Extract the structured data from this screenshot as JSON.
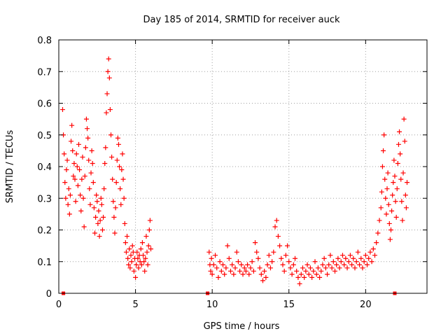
{
  "chart_data": {
    "type": "scatter",
    "title": "Day 185 of 2014, SRMTID for receiver auck",
    "xlabel": "GPS time / hours",
    "ylabel": "SRMTID / TECUs",
    "xlim": [
      0,
      24
    ],
    "ylim": [
      0,
      0.8
    ],
    "x_ticks": [
      0,
      5,
      10,
      15,
      20
    ],
    "y_ticks": [
      0,
      0.1,
      0.2,
      0.3,
      0.4,
      0.5,
      0.6,
      0.7,
      0.8
    ],
    "x_tick_labels": [
      "0",
      "5",
      "10",
      "15",
      "20"
    ],
    "y_tick_labels": [
      "0",
      "0.1",
      "0.2",
      "0.3",
      "0.4",
      "0.5",
      "0.6",
      "0.7",
      "0.8"
    ],
    "grid": true,
    "marker": "+",
    "marker_color": "#ff0000",
    "series": [
      {
        "name": "SRMTID",
        "points": [
          [
            0.25,
            0.58
          ],
          [
            0.3,
            0.5
          ],
          [
            0.35,
            0.44
          ],
          [
            0.4,
            0.35
          ],
          [
            0.45,
            0.3
          ],
          [
            0.5,
            0.39
          ],
          [
            0.55,
            0.42
          ],
          [
            0.6,
            0.28
          ],
          [
            0.65,
            0.33
          ],
          [
            0.7,
            0.25
          ],
          [
            0.75,
            0.31
          ],
          [
            0.8,
            0.48
          ],
          [
            0.85,
            0.53
          ],
          [
            0.9,
            0.45
          ],
          [
            0.95,
            0.37
          ],
          [
            1.0,
            0.41
          ],
          [
            1.05,
            0.36
          ],
          [
            1.1,
            0.29
          ],
          [
            1.15,
            0.44
          ],
          [
            1.2,
            0.4
          ],
          [
            1.25,
            0.34
          ],
          [
            1.3,
            0.47
          ],
          [
            1.35,
            0.39
          ],
          [
            1.4,
            0.31
          ],
          [
            1.45,
            0.26
          ],
          [
            1.5,
            0.36
          ],
          [
            1.55,
            0.43
          ],
          [
            1.6,
            0.3
          ],
          [
            1.65,
            0.21
          ],
          [
            1.7,
            0.37
          ],
          [
            1.75,
            0.46
          ],
          [
            1.8,
            0.55
          ],
          [
            1.85,
            0.52
          ],
          [
            1.9,
            0.49
          ],
          [
            1.95,
            0.42
          ],
          [
            2.0,
            0.33
          ],
          [
            2.05,
            0.28
          ],
          [
            2.1,
            0.38
          ],
          [
            2.15,
            0.45
          ],
          [
            2.2,
            0.41
          ],
          [
            2.25,
            0.35
          ],
          [
            2.3,
            0.27
          ],
          [
            2.35,
            0.19
          ],
          [
            2.4,
            0.24
          ],
          [
            2.45,
            0.31
          ],
          [
            2.5,
            0.29
          ],
          [
            2.55,
            0.22
          ],
          [
            2.6,
            0.26
          ],
          [
            2.65,
            0.18
          ],
          [
            2.7,
            0.23
          ],
          [
            2.75,
            0.3
          ],
          [
            2.8,
            0.28
          ],
          [
            2.85,
            0.2
          ],
          [
            2.9,
            0.24
          ],
          [
            2.95,
            0.33
          ],
          [
            3.0,
            0.41
          ],
          [
            3.05,
            0.46
          ],
          [
            3.1,
            0.57
          ],
          [
            3.15,
            0.63
          ],
          [
            3.2,
            0.7
          ],
          [
            3.25,
            0.74
          ],
          [
            3.3,
            0.68
          ],
          [
            3.35,
            0.58
          ],
          [
            3.4,
            0.5
          ],
          [
            3.45,
            0.43
          ],
          [
            3.5,
            0.36
          ],
          [
            3.55,
            0.29
          ],
          [
            3.6,
            0.24
          ],
          [
            3.65,
            0.19
          ],
          [
            3.7,
            0.27
          ],
          [
            3.75,
            0.35
          ],
          [
            3.8,
            0.42
          ],
          [
            3.85,
            0.49
          ],
          [
            3.9,
            0.47
          ],
          [
            3.95,
            0.4
          ],
          [
            4.0,
            0.33
          ],
          [
            4.05,
            0.28
          ],
          [
            4.1,
            0.39
          ],
          [
            4.15,
            0.44
          ],
          [
            4.2,
            0.36
          ],
          [
            4.25,
            0.3
          ],
          [
            4.3,
            0.22
          ],
          [
            4.35,
            0.16
          ],
          [
            4.4,
            0.13
          ],
          [
            4.45,
            0.18
          ],
          [
            4.5,
            0.11
          ],
          [
            4.55,
            0.09
          ],
          [
            4.6,
            0.14
          ],
          [
            4.65,
            0.08
          ],
          [
            4.7,
            0.12
          ],
          [
            4.75,
            0.1
          ],
          [
            4.8,
            0.15
          ],
          [
            4.85,
            0.13
          ],
          [
            4.9,
            0.07
          ],
          [
            4.95,
            0.11
          ],
          [
            5.0,
            0.05
          ],
          [
            5.05,
            0.09
          ],
          [
            5.1,
            0.13
          ],
          [
            5.15,
            0.11
          ],
          [
            5.2,
            0.08
          ],
          [
            5.25,
            0.12
          ],
          [
            5.3,
            0.1
          ],
          [
            5.35,
            0.14
          ],
          [
            5.4,
            0.09
          ],
          [
            5.45,
            0.16
          ],
          [
            5.5,
            0.12
          ],
          [
            5.55,
            0.1
          ],
          [
            5.6,
            0.07
          ],
          [
            5.65,
            0.11
          ],
          [
            5.7,
            0.18
          ],
          [
            5.75,
            0.13
          ],
          [
            5.8,
            0.09
          ],
          [
            5.85,
            0.15
          ],
          [
            5.9,
            0.2
          ],
          [
            5.95,
            0.23
          ],
          [
            6.0,
            0.14
          ],
          [
            9.8,
            0.13
          ],
          [
            9.85,
            0.09
          ],
          [
            9.9,
            0.07
          ],
          [
            9.95,
            0.11
          ],
          [
            10.0,
            0.06
          ],
          [
            10.1,
            0.09
          ],
          [
            10.2,
            0.12
          ],
          [
            10.3,
            0.08
          ],
          [
            10.4,
            0.05
          ],
          [
            10.5,
            0.1
          ],
          [
            10.6,
            0.07
          ],
          [
            10.7,
            0.09
          ],
          [
            10.8,
            0.06
          ],
          [
            10.9,
            0.08
          ],
          [
            11.0,
            0.15
          ],
          [
            11.1,
            0.11
          ],
          [
            11.2,
            0.07
          ],
          [
            11.3,
            0.09
          ],
          [
            11.4,
            0.06
          ],
          [
            11.5,
            0.08
          ],
          [
            11.6,
            0.13
          ],
          [
            11.7,
            0.1
          ],
          [
            11.8,
            0.07
          ],
          [
            11.9,
            0.09
          ],
          [
            12.0,
            0.06
          ],
          [
            12.1,
            0.08
          ],
          [
            12.2,
            0.07
          ],
          [
            12.3,
            0.09
          ],
          [
            12.4,
            0.06
          ],
          [
            12.5,
            0.08
          ],
          [
            12.6,
            0.1
          ],
          [
            12.7,
            0.07
          ],
          [
            12.8,
            0.16
          ],
          [
            12.9,
            0.13
          ],
          [
            13.0,
            0.11
          ],
          [
            13.1,
            0.08
          ],
          [
            13.2,
            0.06
          ],
          [
            13.3,
            0.04
          ],
          [
            13.4,
            0.07
          ],
          [
            13.5,
            0.05
          ],
          [
            13.6,
            0.09
          ],
          [
            13.7,
            0.12
          ],
          [
            13.8,
            0.08
          ],
          [
            13.9,
            0.1
          ],
          [
            14.0,
            0.13
          ],
          [
            14.1,
            0.21
          ],
          [
            14.2,
            0.23
          ],
          [
            14.3,
            0.18
          ],
          [
            14.4,
            0.15
          ],
          [
            14.5,
            0.11
          ],
          [
            14.6,
            0.09
          ],
          [
            14.7,
            0.07
          ],
          [
            14.8,
            0.12
          ],
          [
            14.9,
            0.15
          ],
          [
            15.0,
            0.1
          ],
          [
            15.1,
            0.08
          ],
          [
            15.2,
            0.06
          ],
          [
            15.3,
            0.09
          ],
          [
            15.4,
            0.11
          ],
          [
            15.5,
            0.07
          ],
          [
            15.6,
            0.05
          ],
          [
            15.7,
            0.03
          ],
          [
            15.8,
            0.06
          ],
          [
            15.9,
            0.08
          ],
          [
            16.0,
            0.05
          ],
          [
            16.1,
            0.07
          ],
          [
            16.2,
            0.09
          ],
          [
            16.3,
            0.06
          ],
          [
            16.4,
            0.08
          ],
          [
            16.5,
            0.05
          ],
          [
            16.6,
            0.07
          ],
          [
            16.7,
            0.1
          ],
          [
            16.8,
            0.06
          ],
          [
            16.9,
            0.08
          ],
          [
            17.0,
            0.05
          ],
          [
            17.1,
            0.07
          ],
          [
            17.2,
            0.09
          ],
          [
            17.3,
            0.11
          ],
          [
            17.4,
            0.08
          ],
          [
            17.5,
            0.06
          ],
          [
            17.6,
            0.09
          ],
          [
            17.7,
            0.12
          ],
          [
            17.8,
            0.08
          ],
          [
            17.9,
            0.1
          ],
          [
            18.0,
            0.07
          ],
          [
            18.1,
            0.09
          ],
          [
            18.2,
            0.11
          ],
          [
            18.3,
            0.08
          ],
          [
            18.4,
            0.1
          ],
          [
            18.5,
            0.12
          ],
          [
            18.6,
            0.09
          ],
          [
            18.7,
            0.11
          ],
          [
            18.8,
            0.08
          ],
          [
            18.9,
            0.1
          ],
          [
            19.0,
            0.12
          ],
          [
            19.1,
            0.09
          ],
          [
            19.2,
            0.11
          ],
          [
            19.3,
            0.08
          ],
          [
            19.4,
            0.1
          ],
          [
            19.5,
            0.13
          ],
          [
            19.6,
            0.09
          ],
          [
            19.7,
            0.11
          ],
          [
            19.8,
            0.08
          ],
          [
            19.9,
            0.1
          ],
          [
            20.0,
            0.12
          ],
          [
            20.1,
            0.09
          ],
          [
            20.2,
            0.11
          ],
          [
            20.3,
            0.13
          ],
          [
            20.4,
            0.1
          ],
          [
            20.5,
            0.14
          ],
          [
            20.6,
            0.12
          ],
          [
            20.7,
            0.16
          ],
          [
            20.8,
            0.19
          ],
          [
            20.9,
            0.23
          ],
          [
            21.0,
            0.27
          ],
          [
            21.05,
            0.32
          ],
          [
            21.1,
            0.4
          ],
          [
            21.15,
            0.45
          ],
          [
            21.2,
            0.5
          ],
          [
            21.25,
            0.36
          ],
          [
            21.3,
            0.3
          ],
          [
            21.35,
            0.25
          ],
          [
            21.4,
            0.33
          ],
          [
            21.45,
            0.38
          ],
          [
            21.5,
            0.28
          ],
          [
            21.55,
            0.22
          ],
          [
            21.6,
            0.17
          ],
          [
            21.65,
            0.2
          ],
          [
            21.7,
            0.26
          ],
          [
            21.75,
            0.31
          ],
          [
            21.8,
            0.35
          ],
          [
            21.85,
            0.42
          ],
          [
            21.9,
            0.37
          ],
          [
            21.95,
            0.29
          ],
          [
            22.0,
            0.24
          ],
          [
            22.05,
            0.33
          ],
          [
            22.1,
            0.41
          ],
          [
            22.15,
            0.47
          ],
          [
            22.2,
            0.51
          ],
          [
            22.25,
            0.44
          ],
          [
            22.3,
            0.36
          ],
          [
            22.35,
            0.29
          ],
          [
            22.4,
            0.23
          ],
          [
            22.45,
            0.38
          ],
          [
            22.5,
            0.55
          ],
          [
            22.55,
            0.48
          ],
          [
            22.6,
            0.31
          ],
          [
            22.65,
            0.27
          ],
          [
            22.7,
            0.35
          ]
        ]
      }
    ],
    "baseline_markers": [
      0.3,
      9.7,
      21.9
    ]
  }
}
